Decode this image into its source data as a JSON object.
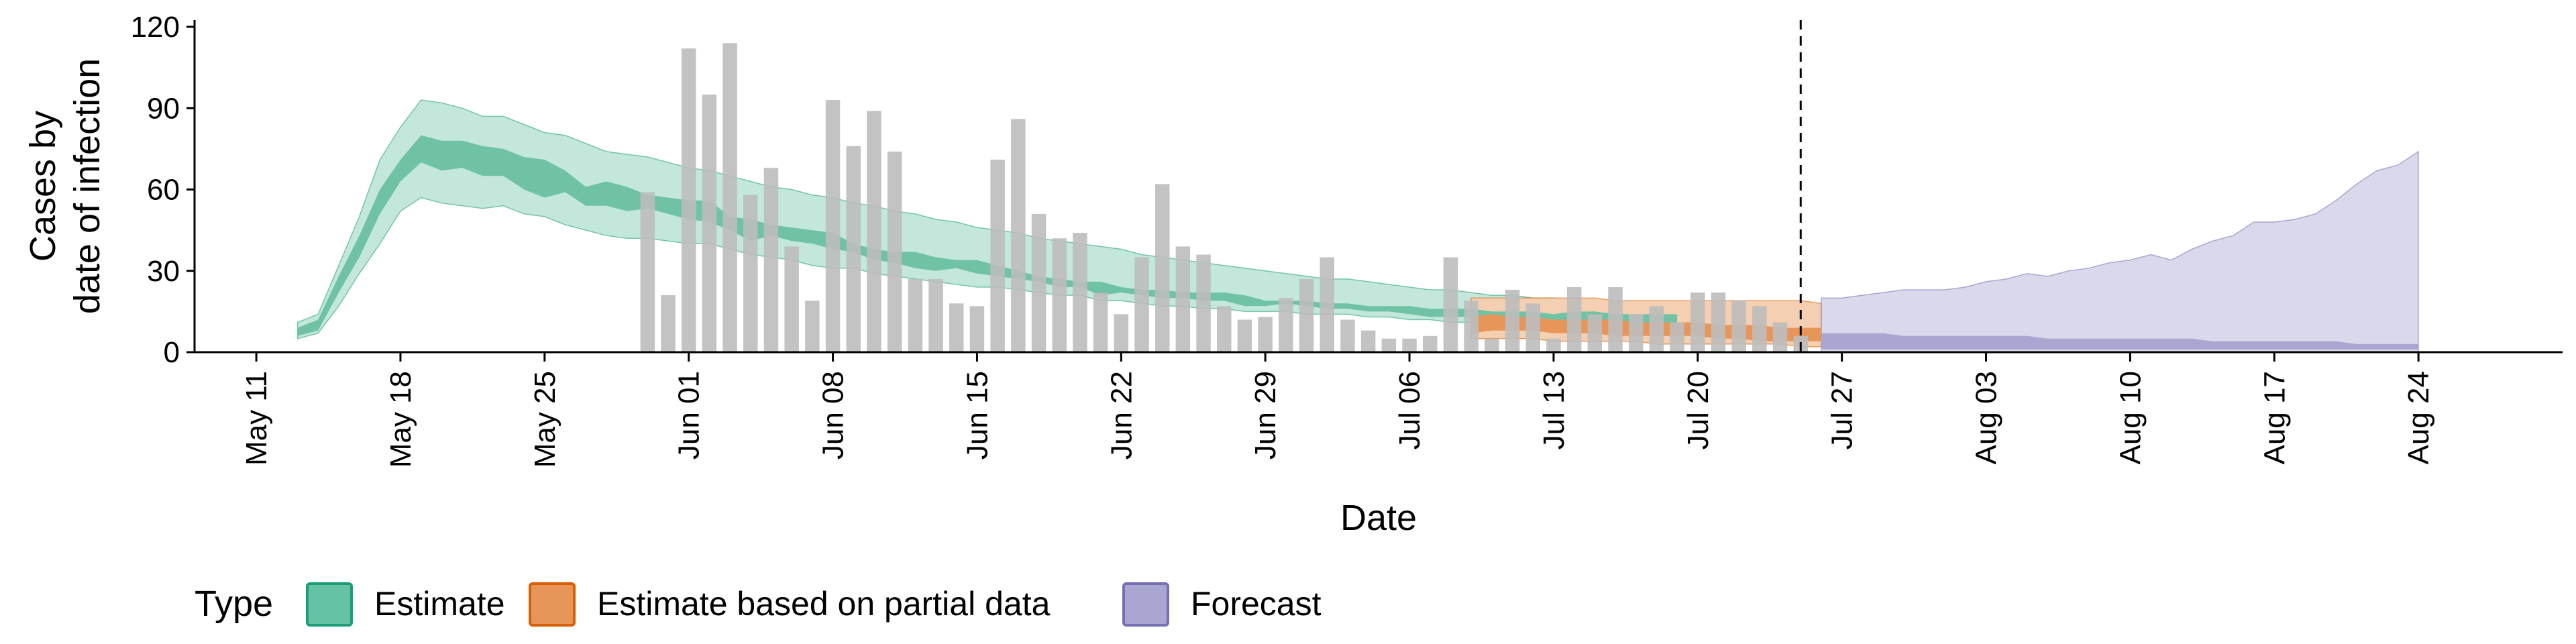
{
  "chart_data": {
    "type": "area",
    "xlabel": "Date",
    "ylabel": [
      "Cases by",
      "date of infection"
    ],
    "ylim": [
      0,
      120
    ],
    "yticks": [
      0,
      30,
      60,
      90,
      120
    ],
    "grid": false,
    "x_start": "2020-05-08",
    "x_end": "2020-08-31",
    "xticks": [
      {
        "date": "2020-05-11",
        "label": "May 11"
      },
      {
        "date": "2020-05-18",
        "label": "May 18"
      },
      {
        "date": "2020-05-25",
        "label": "May 25"
      },
      {
        "date": "2020-06-01",
        "label": "Jun 01"
      },
      {
        "date": "2020-06-08",
        "label": "Jun 08"
      },
      {
        "date": "2020-06-15",
        "label": "Jun 15"
      },
      {
        "date": "2020-06-22",
        "label": "Jun 22"
      },
      {
        "date": "2020-06-29",
        "label": "Jun 29"
      },
      {
        "date": "2020-07-06",
        "label": "Jul 06"
      },
      {
        "date": "2020-07-13",
        "label": "Jul 13"
      },
      {
        "date": "2020-07-20",
        "label": "Jul 20"
      },
      {
        "date": "2020-07-27",
        "label": "Jul 27"
      },
      {
        "date": "2020-08-03",
        "label": "Aug 03"
      },
      {
        "date": "2020-08-10",
        "label": "Aug 10"
      },
      {
        "date": "2020-08-17",
        "label": "Aug 17"
      },
      {
        "date": "2020-08-24",
        "label": "Aug 24"
      }
    ],
    "forecast_start_line": "2020-07-25",
    "legend": {
      "title": "Type",
      "position": "bottom-left",
      "entries": [
        {
          "label": "Estimate",
          "fill": "#66c2a5",
          "border": "#1b9e77"
        },
        {
          "label": "Estimate based on partial data",
          "fill": "#e8955a",
          "border": "#d95f02"
        },
        {
          "label": "Forecast",
          "fill": "#a9a6d2",
          "border": "#7570b3"
        }
      ]
    },
    "colors": {
      "estimate_outer": "#c4e7dc",
      "estimate_inner": "#70c2a5",
      "partial_outer": "#f4cfb1",
      "partial_inner": "#e8955a",
      "forecast_outer": "#d9d9eb",
      "forecast_inner": "#a9a6d2",
      "bars": "#bdbdbd"
    },
    "bars": {
      "start_date": "2020-05-30",
      "values": [
        59,
        21,
        112,
        95,
        114,
        58,
        68,
        39,
        19,
        93,
        76,
        89,
        74,
        27,
        27,
        18,
        17,
        71,
        86,
        51,
        42,
        44,
        22,
        14,
        35,
        62,
        39,
        36,
        17,
        12,
        13,
        20,
        27,
        35,
        12,
        8,
        5,
        5,
        6,
        35,
        19,
        5,
        23,
        18,
        5,
        24,
        14,
        24,
        14,
        17,
        11,
        22,
        22,
        19,
        17,
        11,
        6
      ]
    },
    "series": [
      {
        "name": "Estimate",
        "start_date": "2020-05-13",
        "lower_90": [
          5,
          7,
          17,
          29,
          40,
          52,
          57,
          55,
          54,
          53,
          54,
          51,
          50,
          47,
          45,
          43,
          42,
          42,
          41,
          40,
          40,
          38,
          36,
          35,
          34,
          32,
          31,
          31,
          29,
          28,
          27,
          26,
          25,
          24,
          24,
          23,
          22,
          21,
          21,
          19,
          19,
          18,
          17,
          17,
          16,
          16,
          15,
          15,
          15,
          14,
          14,
          14,
          13,
          13,
          12,
          12,
          11,
          11,
          10,
          10,
          9,
          9,
          8,
          8,
          8,
          7,
          7,
          7
        ],
        "upper_90": [
          11,
          14,
          32,
          50,
          71,
          83,
          93,
          92,
          90,
          87,
          87,
          84,
          81,
          80,
          77,
          74,
          73,
          72,
          70,
          68,
          67,
          65,
          63,
          61,
          60,
          58,
          57,
          55,
          54,
          52,
          51,
          49,
          48,
          46,
          45,
          44,
          42,
          41,
          40,
          39,
          38,
          36,
          35,
          34,
          33,
          32,
          31,
          30,
          29,
          28,
          27,
          27,
          26,
          25,
          24,
          23,
          23,
          22,
          21,
          21,
          20,
          20,
          19,
          19,
          19,
          18,
          18,
          18
        ],
        "lower_50": [
          6,
          8,
          22,
          35,
          51,
          63,
          70,
          67,
          68,
          65,
          65,
          60,
          57,
          59,
          54,
          54,
          52,
          53,
          51,
          49,
          48,
          45,
          41,
          43,
          41,
          40,
          38,
          37,
          34,
          33,
          31,
          30,
          31,
          29,
          28,
          27,
          26,
          24,
          24,
          21,
          22,
          21,
          20,
          20,
          19,
          19,
          17,
          17,
          18,
          17,
          16,
          16,
          15,
          15,
          14,
          13,
          13,
          13,
          13,
          13,
          12,
          11,
          11,
          11,
          10,
          10,
          10,
          9
        ],
        "upper_50": [
          9,
          12,
          28,
          43,
          60,
          71,
          80,
          78,
          78,
          76,
          75,
          72,
          71,
          67,
          61,
          63,
          61,
          58,
          57,
          56,
          56,
          50,
          49,
          47,
          46,
          45,
          44,
          40,
          38,
          37,
          37,
          35,
          34,
          34,
          32,
          30,
          28,
          27,
          26,
          26,
          24,
          23,
          23,
          22,
          22,
          22,
          21,
          19,
          19,
          19,
          18,
          18,
          17,
          17,
          17,
          16,
          16,
          16,
          15,
          15,
          15,
          14,
          15,
          15,
          14,
          14,
          14,
          14
        ]
      },
      {
        "name": "Estimate based on partial data",
        "start_date": "2020-07-09",
        "lower_90": [
          5,
          5,
          5,
          5,
          4,
          4,
          4,
          4,
          4,
          3,
          3,
          3,
          3,
          3,
          3,
          3,
          2,
          2
        ],
        "upper_90": [
          20,
          20,
          20,
          20,
          20,
          20,
          20,
          19,
          19,
          19,
          19,
          19,
          19,
          19,
          19,
          19,
          19,
          18
        ],
        "lower_50": [
          7,
          8,
          8,
          8,
          7,
          7,
          7,
          6,
          6,
          6,
          6,
          6,
          5,
          5,
          4,
          4,
          4,
          4
        ],
        "upper_50": [
          13,
          14,
          13,
          13,
          12,
          12,
          12,
          12,
          11,
          11,
          11,
          11,
          10,
          10,
          10,
          9,
          9,
          9
        ]
      },
      {
        "name": "Forecast",
        "start_date": "2020-07-26",
        "lower_90": [
          0,
          0,
          0,
          0,
          0,
          0,
          0,
          0,
          0,
          0,
          0,
          0,
          0,
          0,
          0,
          0,
          0,
          0,
          0,
          0,
          0,
          0,
          0,
          0,
          0,
          0,
          0,
          0,
          0,
          0
        ],
        "upper_90": [
          20,
          20,
          21,
          22,
          23,
          23,
          23,
          24,
          26,
          27,
          29,
          28,
          30,
          31,
          33,
          34,
          36,
          34,
          38,
          41,
          43,
          48,
          48,
          49,
          51,
          56,
          62,
          67,
          69,
          74
        ],
        "lower_50": [
          1,
          1,
          1,
          1,
          1,
          1,
          1,
          1,
          1,
          1,
          1,
          1,
          1,
          1,
          1,
          1,
          1,
          1,
          1,
          1,
          1,
          1,
          1,
          1,
          1,
          1,
          1,
          1,
          1,
          1
        ],
        "upper_50": [
          7,
          7,
          7,
          7,
          6,
          6,
          6,
          6,
          6,
          6,
          6,
          5,
          5,
          5,
          5,
          5,
          5,
          5,
          5,
          4,
          4,
          4,
          4,
          4,
          4,
          4,
          3,
          3,
          3,
          3
        ]
      }
    ]
  }
}
